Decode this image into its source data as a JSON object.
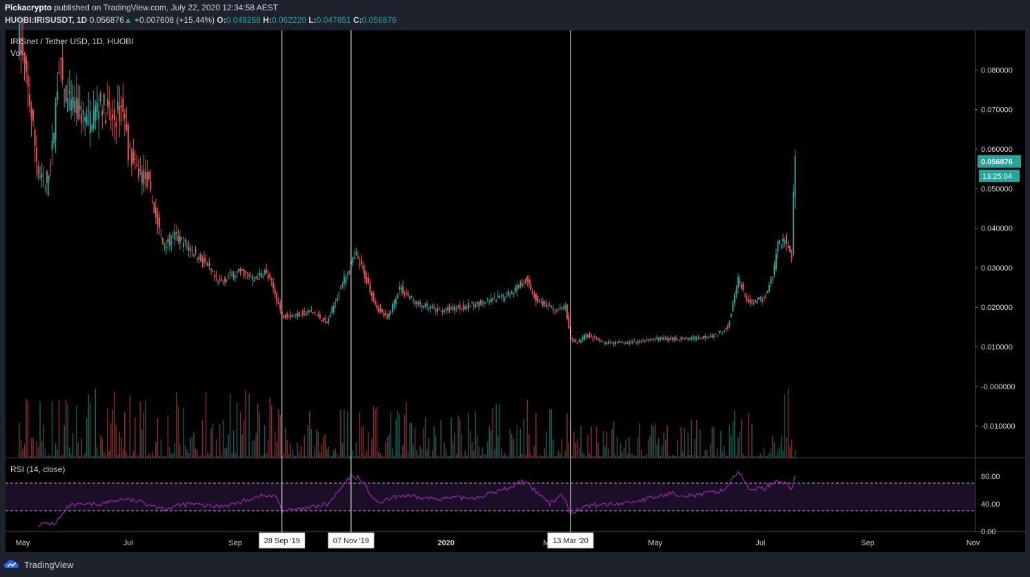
{
  "header": {
    "publisher": "Pickacrypto",
    "published_text": "published on TradingView.com, July 22, 2020 12:34:58 AEST",
    "symbol": "HUOBI:IRISUSDT, 1D",
    "last": "0.056876",
    "change_arrow": "▲",
    "change": "+0.007608 (+15.44%)",
    "o_label": "O:",
    "o_value": "0.049268",
    "h_label": "H:",
    "h_value": "0.062220",
    "l_label": "L:",
    "l_value": "0.047651",
    "c_label": "C:",
    "c_value": "0.056876"
  },
  "legend": {
    "title": "IRISnet / Tether USD, 1D, HUOBI",
    "volume": "Vol",
    "rsi": "RSI (14, close)"
  },
  "brand": {
    "name": "TradingView",
    "icon": "tradingview-logo-icon"
  },
  "colors": {
    "up": "#26a69a",
    "down": "#ef5350",
    "rsi": "#9c27b0",
    "background": "#000000",
    "frame": "#1e222d",
    "marker": "#ffffff"
  },
  "chart_data": [
    {
      "type": "candlestick",
      "title": "IRISnet / Tether USD, 1D, HUOBI",
      "ylim": [
        -0.018,
        0.09
      ],
      "y_ticks": [
        "0.080000",
        "0.070000",
        "0.060000",
        "0.050000",
        "0.040000",
        "0.030000",
        "0.020000",
        "0.010000",
        "-0.000000",
        "-0.010000"
      ],
      "y_tick_values": [
        0.08,
        0.07,
        0.06,
        0.05,
        0.04,
        0.03,
        0.02,
        0.01,
        0,
        -0.01
      ],
      "x_ticks": [
        "May",
        "Jul",
        "Sep",
        "2020",
        "Mar",
        "May",
        "Jul",
        "Sep",
        "Nov"
      ],
      "x_tick_dates": [
        "2019-05-01",
        "2019-07-01",
        "2019-09-01",
        "2020-01-01",
        "2020-03-01",
        "2020-05-01",
        "2020-07-01",
        "2020-09-01",
        "2020-11-01"
      ],
      "x_range": [
        "2019-04-21",
        "2020-11-02"
      ],
      "price_path": [
        [
          "2019-04-29",
          0.088
        ],
        [
          "2019-05-05",
          0.072
        ],
        [
          "2019-05-10",
          0.054
        ],
        [
          "2019-05-14",
          0.05
        ],
        [
          "2019-05-18",
          0.06
        ],
        [
          "2019-05-22",
          0.082
        ],
        [
          "2019-05-26",
          0.072
        ],
        [
          "2019-06-01",
          0.07
        ],
        [
          "2019-06-08",
          0.067
        ],
        [
          "2019-06-15",
          0.072
        ],
        [
          "2019-06-22",
          0.067
        ],
        [
          "2019-06-28",
          0.071
        ],
        [
          "2019-07-01",
          0.06
        ],
        [
          "2019-07-05",
          0.055
        ],
        [
          "2019-07-12",
          0.052
        ],
        [
          "2019-07-17",
          0.043
        ],
        [
          "2019-07-21",
          0.036
        ],
        [
          "2019-07-28",
          0.038
        ],
        [
          "2019-08-05",
          0.035
        ],
        [
          "2019-08-15",
          0.031
        ],
        [
          "2019-08-22",
          0.026
        ],
        [
          "2019-08-29",
          0.028
        ],
        [
          "2019-09-05",
          0.029
        ],
        [
          "2019-09-12",
          0.027
        ],
        [
          "2019-09-18",
          0.029
        ],
        [
          "2019-09-22",
          0.026
        ],
        [
          "2019-09-28",
          0.018
        ],
        [
          "2019-10-05",
          0.018
        ],
        [
          "2019-10-15",
          0.019
        ],
        [
          "2019-10-24",
          0.016
        ],
        [
          "2019-10-31",
          0.024
        ],
        [
          "2019-11-07",
          0.031
        ],
        [
          "2019-11-10",
          0.033
        ],
        [
          "2019-11-14",
          0.029
        ],
        [
          "2019-11-22",
          0.02
        ],
        [
          "2019-11-28",
          0.017
        ],
        [
          "2019-12-05",
          0.025
        ],
        [
          "2019-12-15",
          0.021
        ],
        [
          "2019-12-28",
          0.019
        ],
        [
          "2020-01-10",
          0.02
        ],
        [
          "2020-01-20",
          0.021
        ],
        [
          "2020-01-30",
          0.022
        ],
        [
          "2020-02-08",
          0.024
        ],
        [
          "2020-02-16",
          0.027
        ],
        [
          "2020-02-22",
          0.022
        ],
        [
          "2020-03-04",
          0.019
        ],
        [
          "2020-03-10",
          0.02
        ],
        [
          "2020-03-13",
          0.012
        ],
        [
          "2020-03-17",
          0.011
        ],
        [
          "2020-03-22",
          0.013
        ],
        [
          "2020-04-01",
          0.011
        ],
        [
          "2020-04-15",
          0.011
        ],
        [
          "2020-04-30",
          0.012
        ],
        [
          "2020-05-20",
          0.012
        ],
        [
          "2020-06-05",
          0.013
        ],
        [
          "2020-06-12",
          0.015
        ],
        [
          "2020-06-18",
          0.027
        ],
        [
          "2020-06-24",
          0.021
        ],
        [
          "2020-07-03",
          0.022
        ],
        [
          "2020-07-08",
          0.028
        ],
        [
          "2020-07-11",
          0.036
        ],
        [
          "2020-07-15",
          0.037
        ],
        [
          "2020-07-19",
          0.033
        ],
        [
          "2020-07-20",
          0.049
        ],
        [
          "2020-07-21",
          0.057
        ]
      ],
      "last_price": "0.056876",
      "countdown": "13:25:04",
      "markers": [
        {
          "date": "2019-09-28",
          "label": "28 Sep '19"
        },
        {
          "date": "2019-11-07",
          "label": "07 Nov '19"
        },
        {
          "date": "2020-03-13",
          "label": "13 Mar '20"
        }
      ]
    },
    {
      "type": "line",
      "title": "RSI (14, close)",
      "ylim": [
        0,
        100
      ],
      "y_ticks": [
        "80.00",
        "40.00",
        "0.00"
      ],
      "y_tick_values": [
        80,
        40,
        0
      ],
      "bands": [
        70,
        30
      ],
      "rsi_path": [
        [
          "2019-05-10",
          10
        ],
        [
          "2019-05-20",
          12
        ],
        [
          "2019-05-28",
          37
        ],
        [
          "2019-06-15",
          40
        ],
        [
          "2019-06-28",
          47
        ],
        [
          "2019-07-10",
          42
        ],
        [
          "2019-07-22",
          33
        ],
        [
          "2019-08-05",
          40
        ],
        [
          "2019-08-20",
          36
        ],
        [
          "2019-09-01",
          40
        ],
        [
          "2019-09-15",
          52
        ],
        [
          "2019-09-25",
          50
        ],
        [
          "2019-09-28",
          30
        ],
        [
          "2019-10-10",
          32
        ],
        [
          "2019-10-25",
          40
        ],
        [
          "2019-11-02",
          65
        ],
        [
          "2019-11-07",
          80
        ],
        [
          "2019-11-12",
          78
        ],
        [
          "2019-11-22",
          40
        ],
        [
          "2019-12-05",
          52
        ],
        [
          "2019-12-20",
          48
        ],
        [
          "2020-01-05",
          48
        ],
        [
          "2020-01-20",
          50
        ],
        [
          "2020-02-05",
          62
        ],
        [
          "2020-02-14",
          73
        ],
        [
          "2020-02-20",
          62
        ],
        [
          "2020-03-01",
          40
        ],
        [
          "2020-03-08",
          55
        ],
        [
          "2020-03-13",
          28
        ],
        [
          "2020-03-25",
          38
        ],
        [
          "2020-04-10",
          40
        ],
        [
          "2020-04-25",
          46
        ],
        [
          "2020-05-10",
          55
        ],
        [
          "2020-05-25",
          52
        ],
        [
          "2020-06-10",
          60
        ],
        [
          "2020-06-18",
          88
        ],
        [
          "2020-06-24",
          62
        ],
        [
          "2020-07-03",
          62
        ],
        [
          "2020-07-11",
          75
        ],
        [
          "2020-07-18",
          65
        ],
        [
          "2020-07-19",
          60
        ],
        [
          "2020-07-21",
          82
        ]
      ]
    }
  ]
}
